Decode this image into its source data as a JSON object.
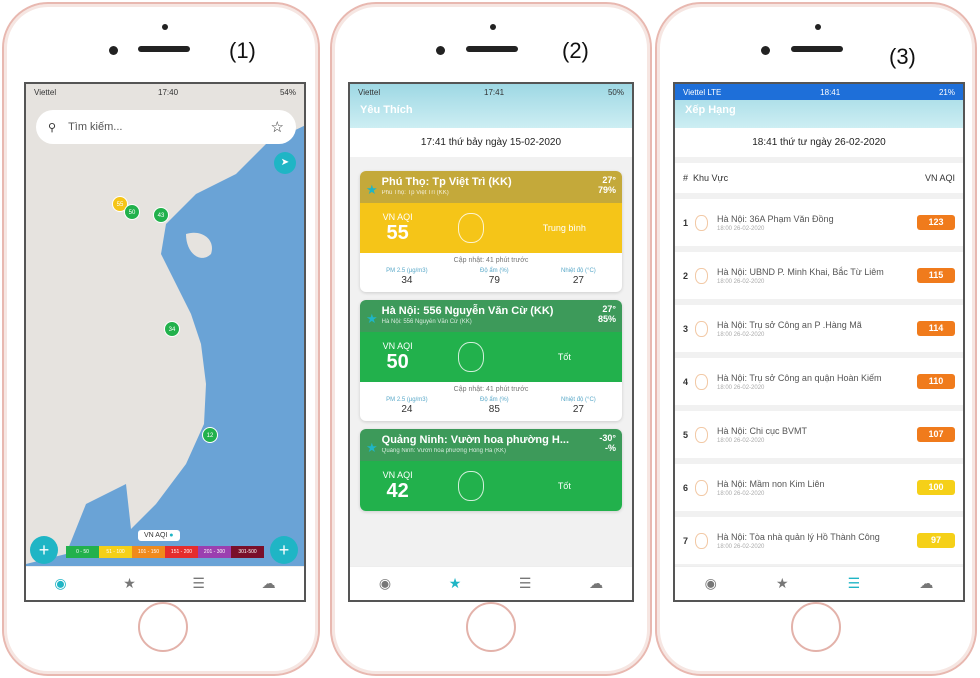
{
  "labels": [
    "(1)",
    "(2)",
    "(3)"
  ],
  "map_screen": {
    "status": {
      "carrier": "Viettel",
      "time": "17:40",
      "battery": "54%"
    },
    "search_placeholder": "Tìm kiếm...",
    "markers": [
      {
        "value": "55",
        "color": "#f5c518"
      },
      {
        "value": "50",
        "color": "#22b14c"
      },
      {
        "value": "43",
        "color": "#22b14c"
      },
      {
        "value": "34",
        "color": "#22b14c"
      },
      {
        "value": "12",
        "color": "#22b14c"
      }
    ],
    "legend_title": "VN AQI",
    "legend": [
      {
        "range": "0 - 50",
        "color": "#22b14c"
      },
      {
        "range": "51 - 100",
        "color": "#f5d018"
      },
      {
        "range": "101 - 150",
        "color": "#f08a1c"
      },
      {
        "range": "151 - 200",
        "color": "#e52d2d"
      },
      {
        "range": "201 - 300",
        "color": "#9b3fb0"
      },
      {
        "range": "301-500",
        "color": "#7a0f2a"
      }
    ]
  },
  "fav_screen": {
    "status": {
      "carrier": "Viettel",
      "time": "17:41",
      "battery": "50%"
    },
    "title": "Yêu Thích",
    "date": "17:41 thứ bảy ngày 15-02-2020",
    "cards": [
      {
        "name": "Phú Thọ: Tp Việt Trì (KK)",
        "sub": "Phú Thọ: Tp Việt Trì (KK)",
        "temp": "27°",
        "hum": "79%",
        "aqi_label": "VN AQI",
        "aqi": "55",
        "status": "Trung bình",
        "top_color": "#c4a93a",
        "mid_color": "#f5c518",
        "updated": "Cập nhật: 41 phút trước",
        "pm_label": "PM 2.5 (µg/m3)",
        "pm": "34",
        "hum_label": "Độ ẩm (%)",
        "hum_val": "79",
        "temp_label": "Nhiệt độ (°C)",
        "temp_val": "27"
      },
      {
        "name": "Hà Nội: 556 Nguyễn Văn Cừ (KK)",
        "sub": "Hà Nội: 556 Nguyễn Văn Cừ (KK)",
        "temp": "27°",
        "hum": "85%",
        "aqi_label": "VN AQI",
        "aqi": "50",
        "status": "Tốt",
        "top_color": "#3d9a5a",
        "mid_color": "#22b14c",
        "updated": "Cập nhật: 41 phút trước",
        "pm_label": "PM 2.5 (µg/m3)",
        "pm": "24",
        "hum_label": "Độ ẩm (%)",
        "hum_val": "85",
        "temp_label": "Nhiệt độ (°C)",
        "temp_val": "27"
      },
      {
        "name": "Quảng Ninh: Vườn hoa phường H...",
        "sub": "Quảng Ninh: Vườn hoa phường Hồng Hà (KK)",
        "temp": "-30°",
        "hum": "-%",
        "aqi_label": "VN AQI",
        "aqi": "42",
        "status": "Tốt",
        "top_color": "#3d9a5a",
        "mid_color": "#22b14c"
      }
    ]
  },
  "rank_screen": {
    "status": {
      "carrier": "Viettel  LTE",
      "time": "18:41",
      "battery": "21%"
    },
    "title": "Xếp Hạng",
    "date": "18:41 thứ tư ngày 26-02-2020",
    "col_rank": "#",
    "col_area": "Khu Vực",
    "col_aqi": "VN AQI",
    "rows": [
      {
        "rank": "1",
        "name": "Hà Nội: 36A Phạm Văn Đồng",
        "time": "18:00 26-02-2020",
        "aqi": "123",
        "color": "#f07b1c"
      },
      {
        "rank": "2",
        "name": "Hà Nội: UBND P. Minh Khai, Bắc Từ Liêm",
        "time": "18:00 26-02-2020",
        "aqi": "115",
        "color": "#f07b1c"
      },
      {
        "rank": "3",
        "name": "Hà Nội: Trụ sở Công an P .Hàng Mã",
        "time": "18:00 26-02-2020",
        "aqi": "114",
        "color": "#f07b1c"
      },
      {
        "rank": "4",
        "name": "Hà Nội: Trụ sở Công an quận Hoàn Kiếm",
        "time": "18:00 26-02-2020",
        "aqi": "110",
        "color": "#f07b1c"
      },
      {
        "rank": "5",
        "name": "Hà Nội: Chi cục BVMT",
        "time": "18:00 26-02-2020",
        "aqi": "107",
        "color": "#f07b1c"
      },
      {
        "rank": "6",
        "name": "Hà Nội: Mầm non Kim Liên",
        "time": "18:00 26-02-2020",
        "aqi": "100",
        "color": "#f5d018"
      },
      {
        "rank": "7",
        "name": "Hà Nội: Tòa nhà quản lý Hồ Thành Công",
        "time": "18:00 26-02-2020",
        "aqi": "97",
        "color": "#f5d018"
      }
    ]
  },
  "tabs": [
    "globe-icon",
    "star-icon",
    "list-icon",
    "cloud-icon"
  ]
}
